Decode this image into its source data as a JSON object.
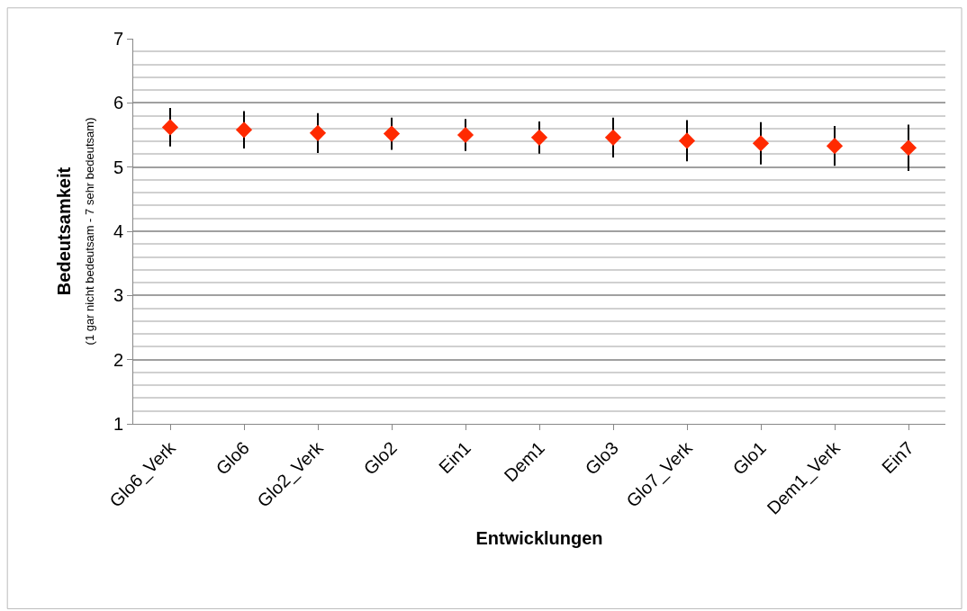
{
  "chart_data": {
    "type": "scatter",
    "xlabel": "Entwicklungen",
    "ylabel": "Bedeutsamkeit\n(1 gar nicht bedeutsam - 7 sehr bedeutsam)",
    "categories": [
      "Glo6_Verk",
      "Glo6",
      "Glo2_Verk",
      "Glo2",
      "Ein1",
      "Dem1",
      "Glo3",
      "Glo7_Verk",
      "Glo1",
      "Dem1_Verk",
      "Ein7"
    ],
    "series": [
      {
        "color": "#ff2a00",
        "values": [
          5.62,
          5.58,
          5.53,
          5.52,
          5.5,
          5.46,
          5.46,
          5.41,
          5.37,
          5.33,
          5.3
        ],
        "errors": [
          0.3,
          0.29,
          0.31,
          0.25,
          0.25,
          0.25,
          0.31,
          0.32,
          0.33,
          0.31,
          0.36
        ]
      }
    ],
    "ylim": [
      1,
      7
    ],
    "yticks": [
      1,
      2,
      3,
      4,
      5,
      6,
      7
    ],
    "grid": "y",
    "marker": "diamond"
  }
}
